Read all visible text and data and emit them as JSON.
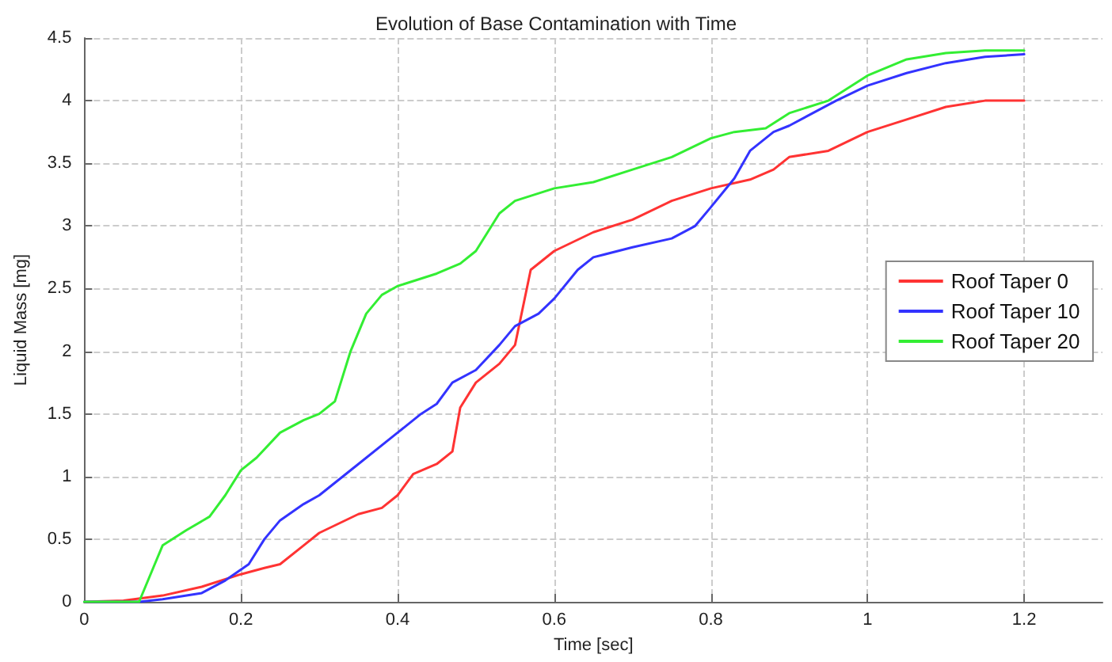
{
  "chart_data": {
    "type": "line",
    "title": "Evolution of Base Contamination with Time",
    "xlabel": "Time [sec]",
    "ylabel": "Liquid Mass [mg]",
    "xlim": [
      0,
      1.3
    ],
    "xticks": [
      0,
      0.2,
      0.4,
      0.6,
      0.8,
      1,
      1.2
    ],
    "ylim": [
      0,
      4.5
    ],
    "yticks": [
      0,
      0.5,
      1,
      1.5,
      2,
      2.5,
      3,
      3.5,
      4,
      4.5
    ],
    "grid": true,
    "legend": "right",
    "marker": "none",
    "line_style": "solid",
    "series": [
      {
        "name": "Roof Taper 0",
        "color": "#ff3333",
        "x": [
          0,
          0.05,
          0.1,
          0.15,
          0.2,
          0.23,
          0.25,
          0.28,
          0.3,
          0.35,
          0.38,
          0.4,
          0.42,
          0.45,
          0.47,
          0.48,
          0.5,
          0.53,
          0.55,
          0.57,
          0.6,
          0.65,
          0.7,
          0.75,
          0.8,
          0.85,
          0.88,
          0.9,
          0.95,
          1.0,
          1.05,
          1.1,
          1.15,
          1.2
        ],
        "values": [
          0,
          0.01,
          0.05,
          0.12,
          0.22,
          0.27,
          0.3,
          0.45,
          0.55,
          0.7,
          0.75,
          0.85,
          1.02,
          1.1,
          1.2,
          1.55,
          1.75,
          1.9,
          2.05,
          2.65,
          2.8,
          2.95,
          3.05,
          3.2,
          3.3,
          3.37,
          3.45,
          3.55,
          3.6,
          3.75,
          3.85,
          3.95,
          4.0,
          4.0
        ]
      },
      {
        "name": "Roof Taper 10",
        "color": "#3333ff",
        "x": [
          0,
          0.07,
          0.1,
          0.15,
          0.18,
          0.21,
          0.23,
          0.25,
          0.28,
          0.3,
          0.35,
          0.4,
          0.43,
          0.45,
          0.47,
          0.5,
          0.53,
          0.55,
          0.58,
          0.6,
          0.63,
          0.65,
          0.7,
          0.75,
          0.78,
          0.8,
          0.83,
          0.85,
          0.88,
          0.9,
          0.93,
          0.96,
          1.0,
          1.05,
          1.1,
          1.15,
          1.2
        ],
        "values": [
          0,
          0,
          0.02,
          0.07,
          0.17,
          0.3,
          0.5,
          0.65,
          0.78,
          0.85,
          1.1,
          1.35,
          1.5,
          1.58,
          1.75,
          1.85,
          2.05,
          2.2,
          2.3,
          2.42,
          2.65,
          2.75,
          2.83,
          2.9,
          3.0,
          3.15,
          3.38,
          3.6,
          3.75,
          3.8,
          3.9,
          4.0,
          4.12,
          4.22,
          4.3,
          4.35,
          4.37
        ]
      },
      {
        "name": "Roof Taper 20",
        "color": "#33ee33",
        "x": [
          0,
          0.07,
          0.09,
          0.1,
          0.13,
          0.16,
          0.18,
          0.2,
          0.22,
          0.25,
          0.28,
          0.3,
          0.32,
          0.34,
          0.36,
          0.38,
          0.4,
          0.45,
          0.48,
          0.5,
          0.53,
          0.55,
          0.6,
          0.65,
          0.7,
          0.75,
          0.8,
          0.83,
          0.87,
          0.9,
          0.95,
          1.0,
          1.05,
          1.1,
          1.15,
          1.2
        ],
        "values": [
          0,
          0,
          0.3,
          0.45,
          0.57,
          0.68,
          0.85,
          1.05,
          1.15,
          1.35,
          1.45,
          1.5,
          1.6,
          2.0,
          2.3,
          2.45,
          2.52,
          2.62,
          2.7,
          2.8,
          3.1,
          3.2,
          3.3,
          3.35,
          3.45,
          3.55,
          3.7,
          3.75,
          3.78,
          3.9,
          4.0,
          4.2,
          4.33,
          4.38,
          4.4,
          4.4
        ]
      }
    ]
  }
}
